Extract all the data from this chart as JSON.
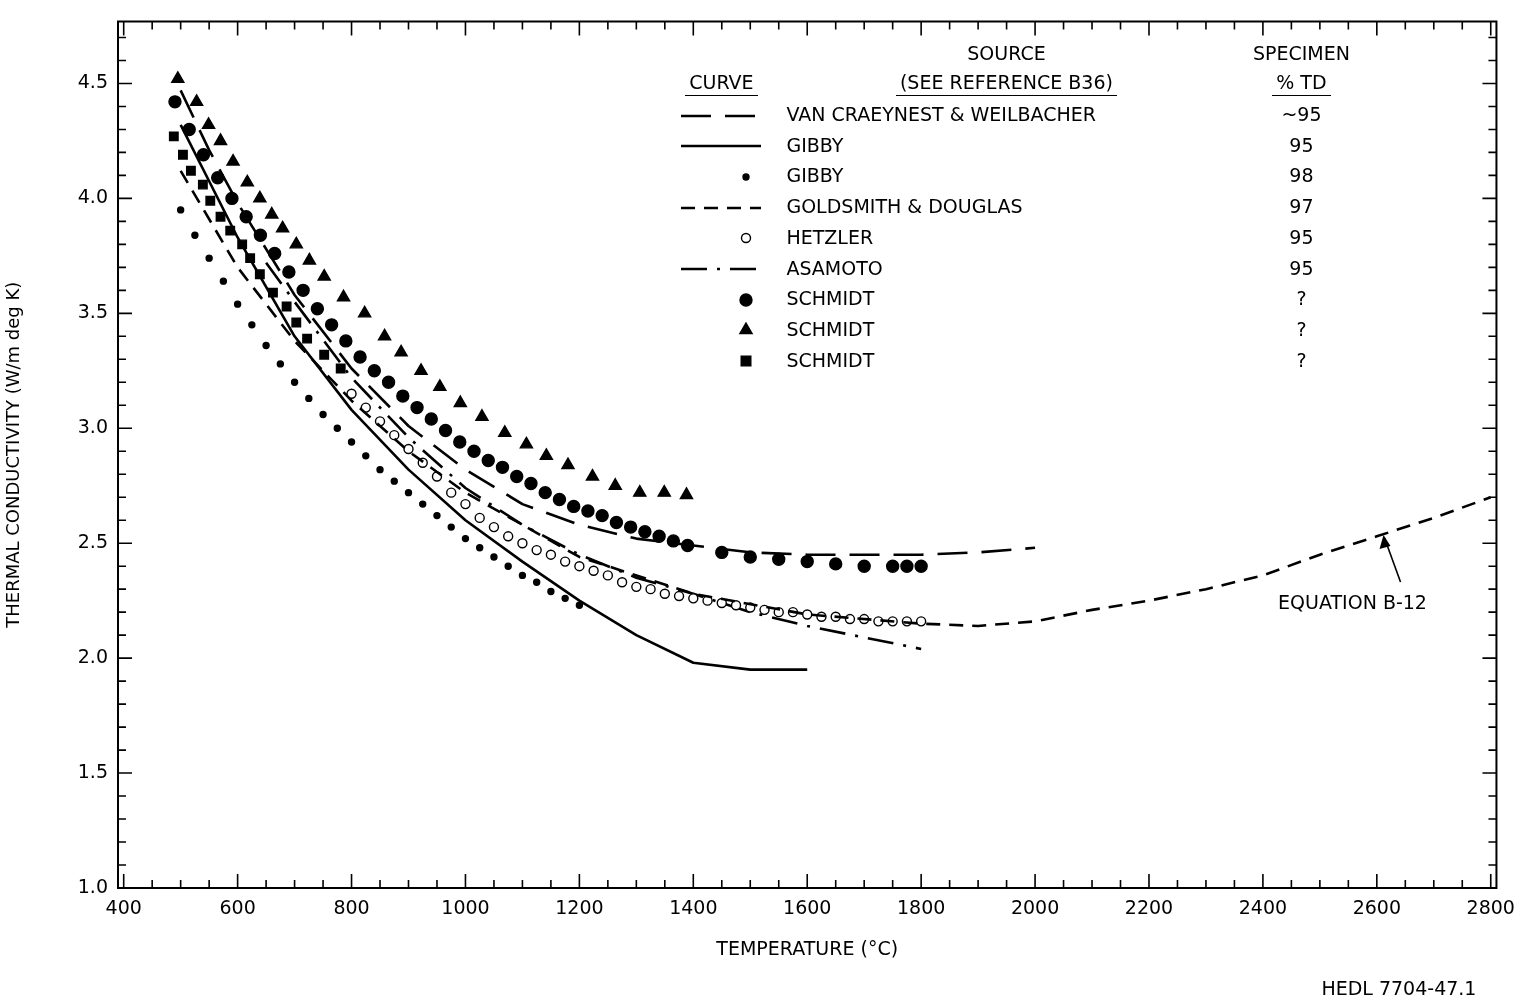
{
  "chart_data": {
    "type": "line",
    "xlabel": "TEMPERATURE (°C)",
    "ylabel": "THERMAL CONDUCTIVITY (W/m deg K)",
    "xlim": [
      390,
      2810
    ],
    "ylim": [
      1,
      4.77
    ],
    "xticks": [
      400,
      {
        "value": 450,
        "label": null
      },
      {
        "value": 500,
        "label": null
      },
      {
        "value": 550,
        "label": null
      },
      600,
      {
        "value": 650,
        "label": null
      },
      {
        "value": 700,
        "label": null
      },
      {
        "value": 750,
        "label": null
      },
      800,
      {
        "value": 850,
        "label": null
      },
      {
        "value": 900,
        "label": null
      },
      {
        "value": 950,
        "label": null
      },
      1000,
      {
        "value": 1050,
        "label": null
      },
      {
        "value": 1100,
        "label": null
      },
      {
        "value": 1150,
        "label": null
      },
      1200,
      {
        "value": 1250,
        "label": null
      },
      {
        "value": 1300,
        "label": null
      },
      {
        "value": 1350,
        "label": null
      },
      1400,
      {
        "value": 1450,
        "label": null
      },
      {
        "value": 1500,
        "label": null
      },
      {
        "value": 1550,
        "label": null
      },
      1600,
      {
        "value": 1650,
        "label": null
      },
      {
        "value": 1700,
        "label": null
      },
      {
        "value": 1750,
        "label": null
      },
      1800,
      {
        "value": 1850,
        "label": null
      },
      {
        "value": 1900,
        "label": null
      },
      {
        "value": 1950,
        "label": null
      },
      2000,
      {
        "value": 2050,
        "label": null
      },
      {
        "value": 2100,
        "label": null
      },
      {
        "value": 2150,
        "label": null
      },
      2200,
      {
        "value": 2250,
        "label": null
      },
      {
        "value": 2300,
        "label": null
      },
      {
        "value": 2350,
        "label": null
      },
      2400,
      {
        "value": 2450,
        "label": null
      },
      {
        "value": 2500,
        "label": null
      },
      {
        "value": 2550,
        "label": null
      },
      2600,
      {
        "value": 2650,
        "label": null
      },
      {
        "value": 2700,
        "label": null
      },
      {
        "value": 2750,
        "label": null
      },
      2800
    ],
    "yticks": [
      {
        "value": 1,
        "label": "1.0"
      },
      {
        "value": 1.1,
        "label": null
      },
      {
        "value": 1.2,
        "label": null
      },
      {
        "value": 1.3,
        "label": null
      },
      {
        "value": 1.4,
        "label": null
      },
      1.5,
      {
        "value": 1.6,
        "label": null
      },
      {
        "value": 1.7,
        "label": null
      },
      {
        "value": 1.8,
        "label": null
      },
      {
        "value": 1.9,
        "label": null
      },
      {
        "value": 2,
        "label": "2.0"
      },
      {
        "value": 2.1,
        "label": null
      },
      {
        "value": 2.2,
        "label": null
      },
      {
        "value": 2.3,
        "label": null
      },
      {
        "value": 2.4,
        "label": null
      },
      2.5,
      {
        "value": 2.6,
        "label": null
      },
      {
        "value": 2.7,
        "label": null
      },
      {
        "value": 2.8,
        "label": null
      },
      {
        "value": 2.9,
        "label": null
      },
      {
        "value": 3,
        "label": "3.0"
      },
      {
        "value": 3.1,
        "label": null
      },
      {
        "value": 3.2,
        "label": null
      },
      {
        "value": 3.3,
        "label": null
      },
      {
        "value": 3.4,
        "label": null
      },
      3.5,
      {
        "value": 3.6,
        "label": null
      },
      {
        "value": 3.7,
        "label": null
      },
      {
        "value": 3.8,
        "label": null
      },
      {
        "value": 3.9,
        "label": null
      },
      {
        "value": 4,
        "label": "4.0"
      },
      {
        "value": 4.1,
        "label": null
      },
      {
        "value": 4.2,
        "label": null
      },
      {
        "value": 4.3,
        "label": null
      },
      {
        "value": 4.4,
        "label": null
      },
      4.5,
      {
        "value": 4.6,
        "label": null
      },
      {
        "value": 4.7,
        "label": null
      }
    ],
    "legend": "top right",
    "series": [
      {
        "name": "VAN CRAEYNEST & WEILBACHER",
        "type": "line",
        "line_style": "longdash",
        "color": "#000000",
        "x": [
          500,
          550,
          600,
          700,
          800,
          900,
          1000,
          1100,
          1200,
          1300,
          1400,
          1500,
          1600,
          1700,
          1800,
          1900,
          2000
        ],
        "values": [
          4.47,
          4.21,
          3.98,
          3.58,
          3.26,
          3.01,
          2.82,
          2.67,
          2.58,
          2.52,
          2.49,
          2.46,
          2.45,
          2.45,
          2.45,
          2.46,
          2.48
        ]
      },
      {
        "name": "GIBBY",
        "type": "line",
        "line_style": "solid",
        "color": "#000000",
        "x": [
          500,
          600,
          700,
          800,
          900,
          1000,
          1100,
          1200,
          1300,
          1400,
          1500,
          1600
        ],
        "values": [
          4.32,
          3.83,
          3.4,
          3.08,
          2.82,
          2.6,
          2.42,
          2.25,
          2.1,
          1.98,
          1.95,
          1.95
        ]
      },
      {
        "name": "GIBBY",
        "type": "scatter",
        "marker": "dot",
        "color": "#000000",
        "x": [
          500,
          525,
          550,
          575,
          600,
          625,
          650,
          675,
          700,
          725,
          750,
          775,
          800,
          825,
          850,
          875,
          900,
          925,
          950,
          975,
          1000,
          1025,
          1050,
          1075,
          1100,
          1125,
          1150,
          1175,
          1200
        ],
        "values": [
          3.95,
          3.84,
          3.74,
          3.64,
          3.54,
          3.45,
          3.36,
          3.28,
          3.2,
          3.13,
          3.06,
          3.0,
          2.94,
          2.88,
          2.82,
          2.77,
          2.72,
          2.67,
          2.62,
          2.57,
          2.52,
          2.48,
          2.44,
          2.4,
          2.36,
          2.33,
          2.29,
          2.26,
          2.23
        ]
      },
      {
        "name": "GOLDSMITH & DOUGLAS",
        "type": "line",
        "line_style": "dashed",
        "color": "#000000",
        "x": [
          500,
          600,
          700,
          800,
          900,
          1000,
          1200,
          1400,
          1600,
          1800,
          1900,
          2000,
          2100,
          2200,
          2300,
          2400,
          2500,
          2600,
          2700,
          2800
        ],
        "values": [
          4.12,
          3.7,
          3.38,
          3.12,
          2.9,
          2.72,
          2.44,
          2.28,
          2.19,
          2.15,
          2.14,
          2.16,
          2.21,
          2.25,
          2.3,
          2.36,
          2.45,
          2.53,
          2.61,
          2.7
        ]
      },
      {
        "name": "HETZLER",
        "type": "scatter",
        "marker": "circle-open",
        "color": "#000000",
        "x": [
          800,
          825,
          850,
          875,
          900,
          925,
          950,
          975,
          1000,
          1025,
          1050,
          1075,
          1100,
          1125,
          1150,
          1175,
          1200,
          1225,
          1250,
          1275,
          1300,
          1325,
          1350,
          1375,
          1400,
          1425,
          1450,
          1475,
          1500,
          1525,
          1550,
          1575,
          1600,
          1625,
          1650,
          1675,
          1700,
          1725,
          1750,
          1775,
          1800
        ],
        "values": [
          3.15,
          3.09,
          3.03,
          2.97,
          2.91,
          2.85,
          2.79,
          2.72,
          2.67,
          2.61,
          2.57,
          2.53,
          2.5,
          2.47,
          2.45,
          2.42,
          2.4,
          2.38,
          2.36,
          2.33,
          2.31,
          2.3,
          2.28,
          2.27,
          2.26,
          2.25,
          2.24,
          2.23,
          2.22,
          2.21,
          2.2,
          2.2,
          2.19,
          2.18,
          2.18,
          2.17,
          2.17,
          2.16,
          2.16,
          2.16,
          2.16
        ]
      },
      {
        "name": "ASAMOTO",
        "type": "line",
        "line_style": "dashdot",
        "color": "#000000",
        "x": [
          650,
          700,
          800,
          900,
          1000,
          1100,
          1200,
          1300,
          1400,
          1500,
          1600,
          1700,
          1800
        ],
        "values": [
          3.72,
          3.55,
          3.22,
          2.96,
          2.74,
          2.58,
          2.45,
          2.35,
          2.28,
          2.2,
          2.14,
          2.09,
          2.04
        ]
      },
      {
        "name": "SCHMIDT",
        "type": "scatter",
        "marker": "circle",
        "color": "#000000",
        "x": [
          490,
          515,
          540,
          565,
          590,
          615,
          640,
          665,
          690,
          715,
          740,
          765,
          790,
          815,
          840,
          865,
          890,
          915,
          940,
          965,
          990,
          1015,
          1040,
          1065,
          1090,
          1115,
          1140,
          1165,
          1190,
          1215,
          1240,
          1265,
          1290,
          1315,
          1340,
          1365,
          1390,
          1450,
          1500,
          1550,
          1600,
          1650,
          1700,
          1750,
          1775,
          1800
        ],
        "values": [
          4.42,
          4.3,
          4.19,
          4.09,
          4.0,
          3.92,
          3.84,
          3.76,
          3.68,
          3.6,
          3.52,
          3.45,
          3.38,
          3.31,
          3.25,
          3.2,
          3.14,
          3.09,
          3.04,
          2.99,
          2.94,
          2.9,
          2.86,
          2.83,
          2.79,
          2.76,
          2.72,
          2.69,
          2.66,
          2.64,
          2.62,
          2.59,
          2.57,
          2.55,
          2.53,
          2.51,
          2.49,
          2.46,
          2.44,
          2.43,
          2.42,
          2.41,
          2.4,
          2.4,
          2.4,
          2.4
        ]
      },
      {
        "name": "SCHMIDT",
        "type": "scatter",
        "marker": "triangle",
        "color": "#000000",
        "x": [
          495,
          528,
          549,
          570,
          592,
          617,
          639,
          660,
          679,
          703,
          726,
          752,
          786,
          823,
          858,
          887,
          922,
          955,
          991,
          1029,
          1069,
          1107,
          1142,
          1180,
          1223,
          1263,
          1306,
          1349,
          1388
        ],
        "values": [
          4.52,
          4.42,
          4.32,
          4.25,
          4.16,
          4.07,
          4.0,
          3.93,
          3.87,
          3.8,
          3.73,
          3.66,
          3.57,
          3.5,
          3.4,
          3.33,
          3.25,
          3.18,
          3.11,
          3.05,
          2.98,
          2.93,
          2.88,
          2.84,
          2.79,
          2.75,
          2.72,
          2.72,
          2.71
        ]
      },
      {
        "name": "SCHMIDT",
        "type": "scatter",
        "marker": "square",
        "color": "#000000",
        "x": [
          488,
          504,
          518,
          539,
          552,
          570,
          587,
          608,
          622,
          639,
          662,
          686,
          703,
          722,
          752,
          781
        ],
        "values": [
          4.27,
          4.19,
          4.12,
          4.06,
          3.99,
          3.92,
          3.86,
          3.8,
          3.74,
          3.67,
          3.59,
          3.53,
          3.46,
          3.39,
          3.32,
          3.26
        ]
      }
    ],
    "annotations": [
      "CURVE",
      "SOURCE",
      "(SEE REFERENCE B36)",
      "SPECIMEN",
      "% TD",
      "~95",
      "95",
      "98",
      "97",
      "95",
      "95",
      "?",
      "?",
      "?",
      {
        "text": "EQUATION B-12",
        "x": 2610,
        "y": 2.54
      },
      "HEDL 7704-47.1"
    ]
  }
}
